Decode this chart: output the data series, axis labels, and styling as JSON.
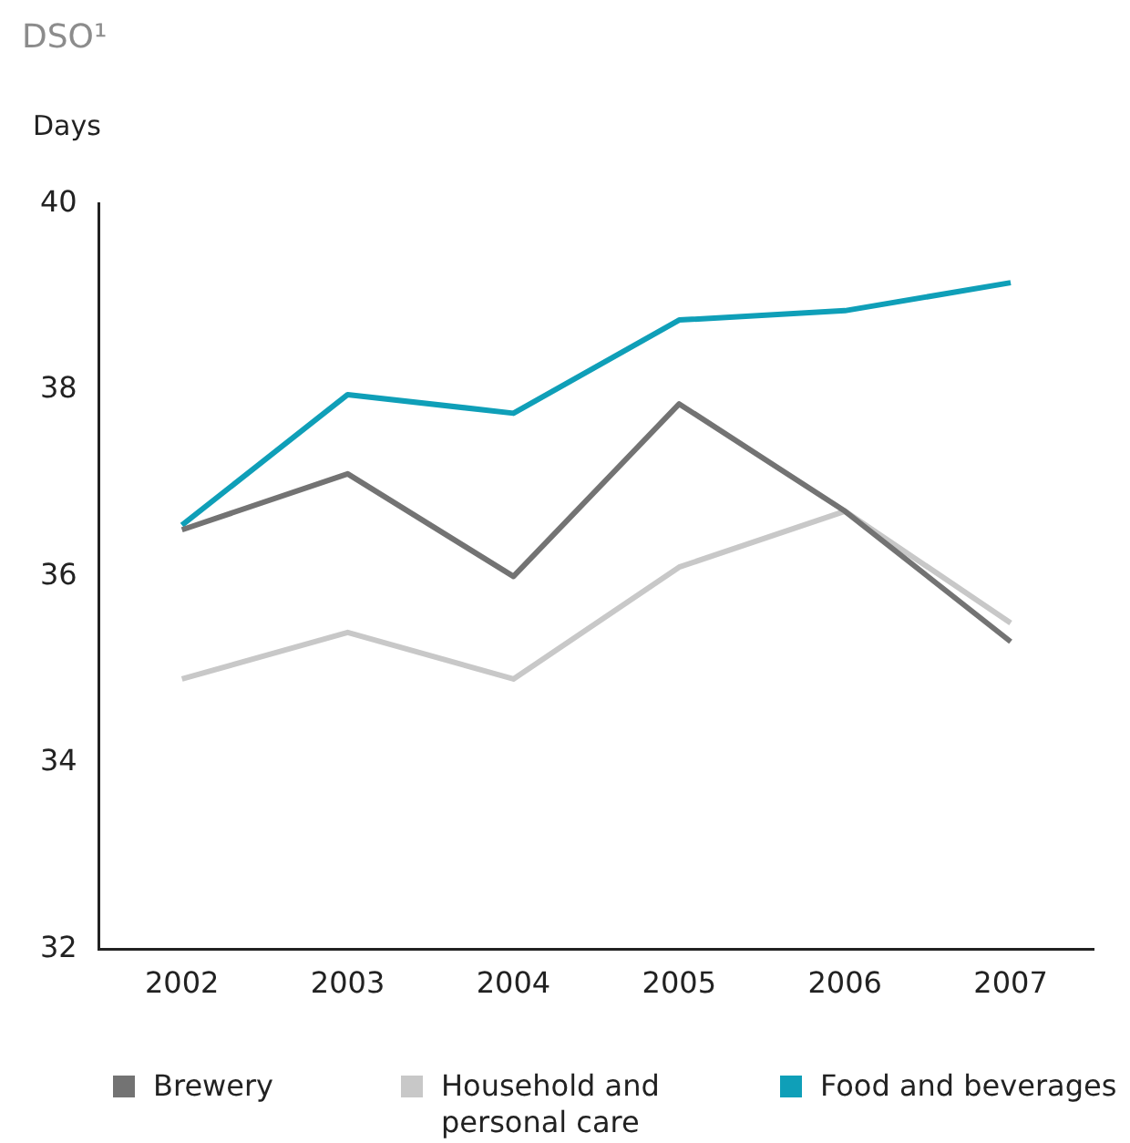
{
  "chart_data": {
    "type": "line",
    "title": "DSO¹",
    "ylabel": "Days",
    "categories": [
      "2002",
      "2003",
      "2004",
      "2005",
      "2006",
      "2007"
    ],
    "series": [
      {
        "name": "Brewery",
        "color": "#737373",
        "values": [
          36.5,
          37.1,
          36.0,
          37.85,
          36.7,
          35.3
        ]
      },
      {
        "name": "Household and personal care",
        "color": "#c8c8c8",
        "values": [
          34.9,
          35.4,
          34.9,
          36.1,
          36.7,
          35.5
        ]
      },
      {
        "name": "Food and beverages",
        "color": "#0f9fb8",
        "values": [
          36.55,
          37.95,
          37.75,
          38.75,
          38.85,
          39.15
        ]
      }
    ],
    "ylim": [
      32,
      40
    ],
    "yticks": [
      32,
      34,
      36,
      38,
      40
    ],
    "grid": false,
    "legend": "bottom",
    "marker": "none",
    "line_style": "solid"
  }
}
